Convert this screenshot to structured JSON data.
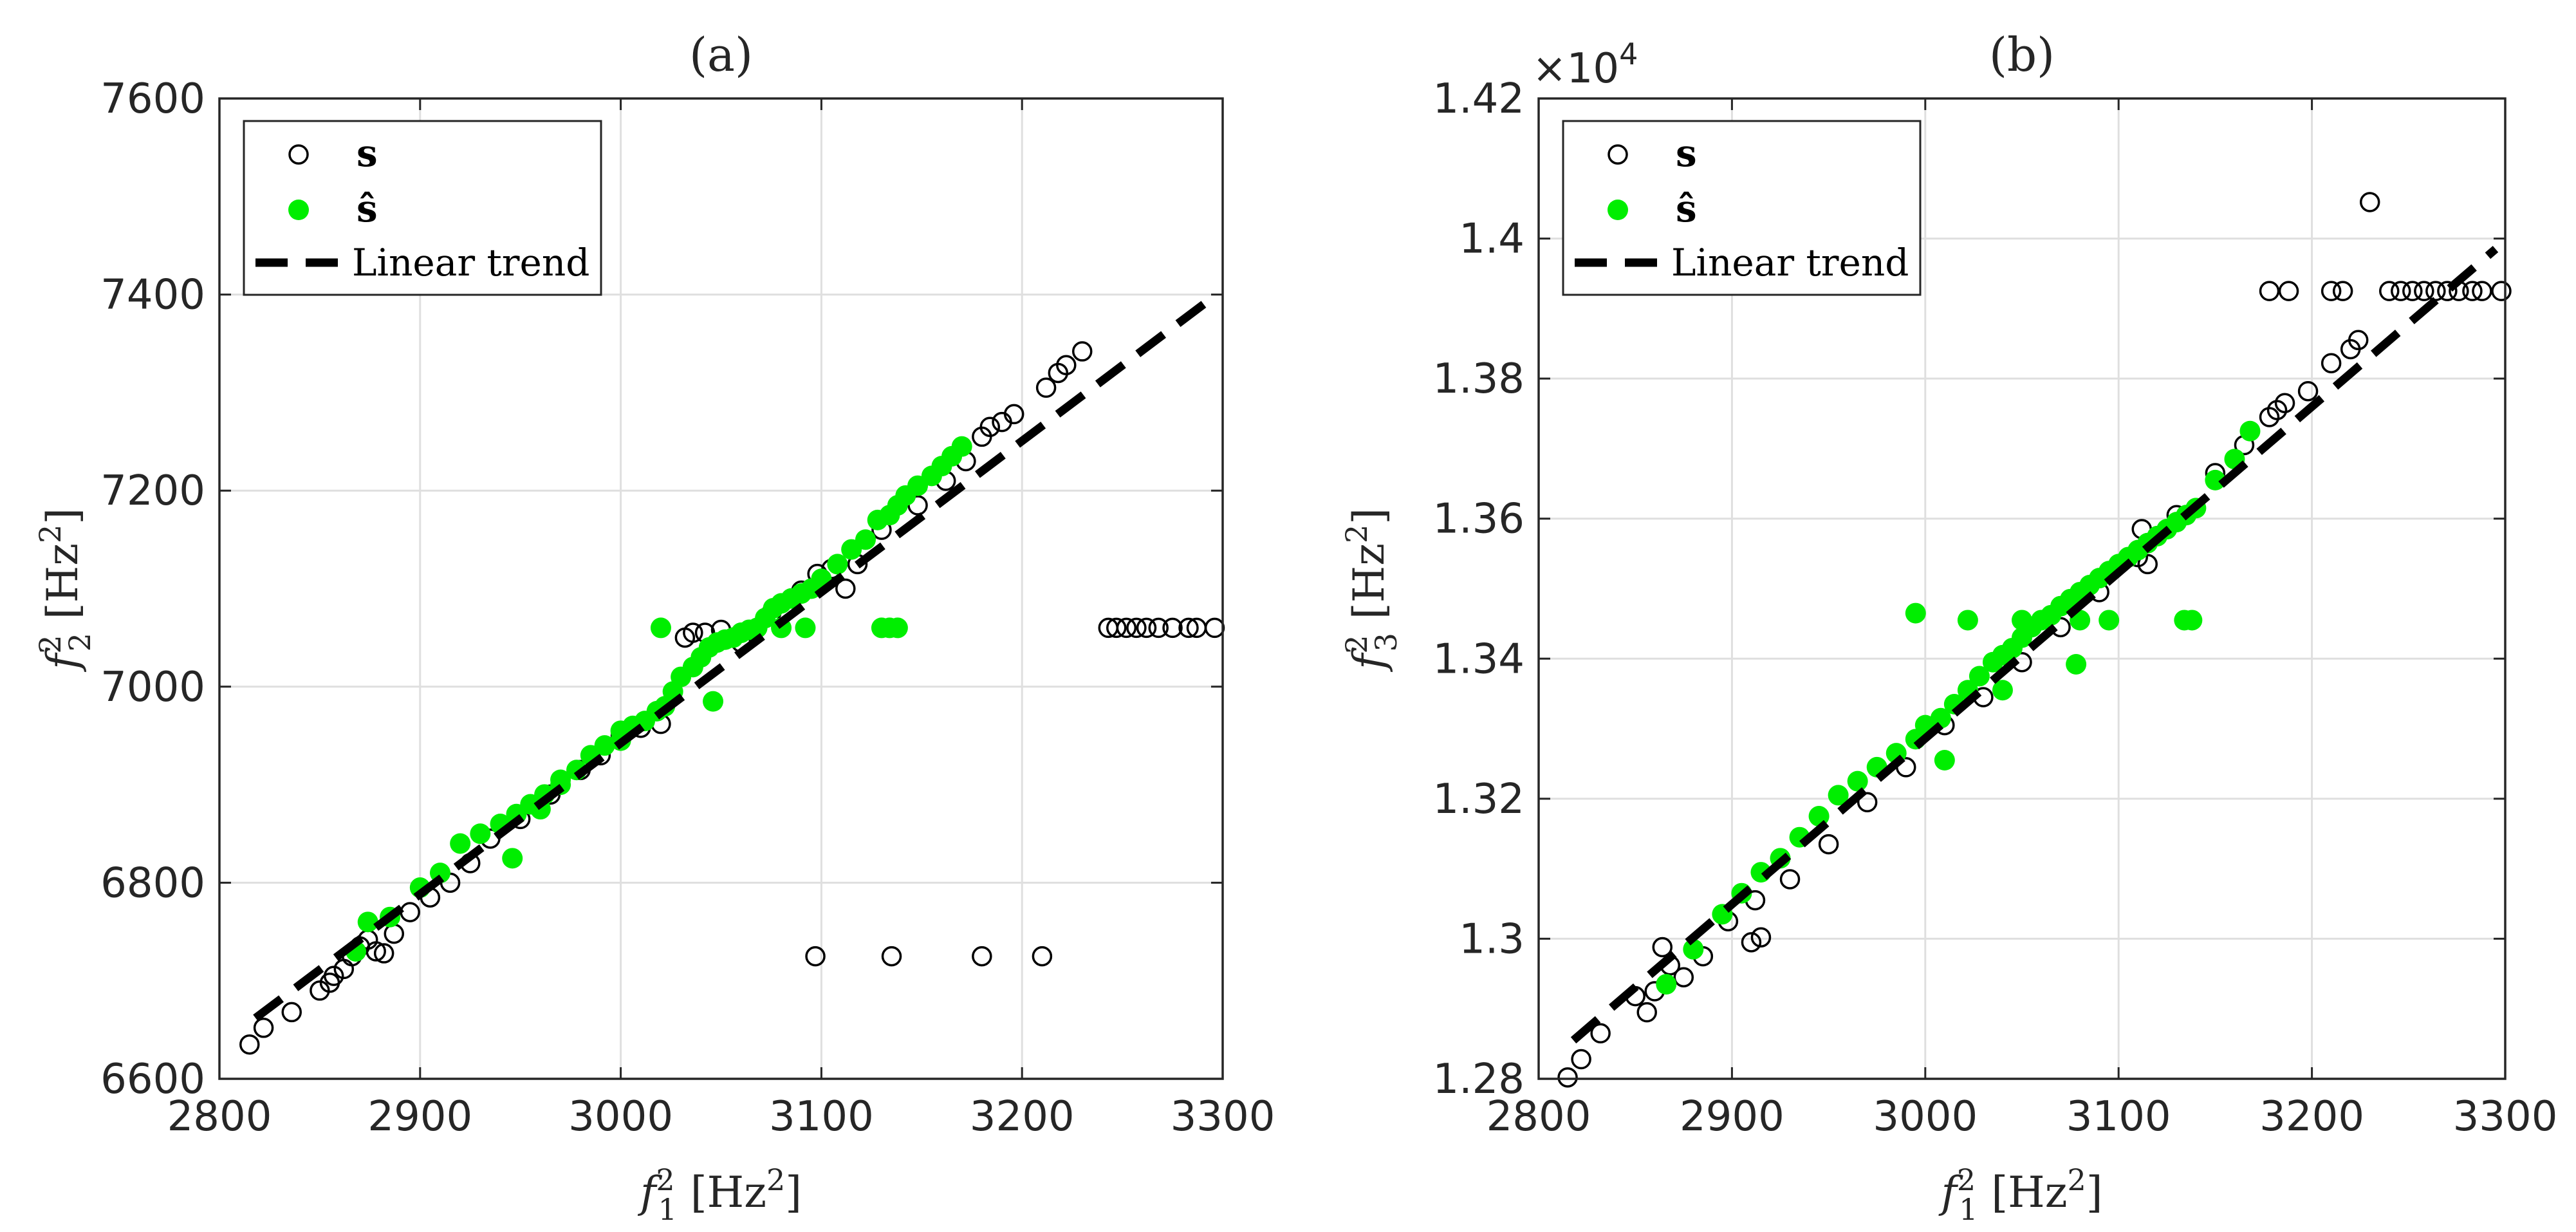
{
  "chart_data": [
    {
      "type": "scatter",
      "title": "(a)",
      "xlabel": "f_1^2 [Hz^2]",
      "ylabel": "f_2^2 [Hz^2]",
      "xlim": [
        2800,
        3300
      ],
      "ylim": [
        6600,
        7600
      ],
      "xticks": [
        "2800",
        "2900",
        "3000",
        "3100",
        "3200",
        "3300"
      ],
      "yticks": [
        "6600",
        "6800",
        "7000",
        "7200",
        "7400",
        "7600"
      ],
      "grid": true,
      "legend": {
        "position": "top-left",
        "entries": [
          "s",
          "ŝ",
          "Linear trend"
        ]
      },
      "trend": {
        "x": [
          2818,
          3295
        ],
        "y": [
          6662,
          7397
        ]
      },
      "series": [
        {
          "name": "s",
          "marker": "open-circle",
          "color": "#000000",
          "x": [
            2815,
            2822,
            2836,
            2850,
            2855,
            2857,
            2862,
            2866,
            2870,
            2874,
            2878,
            2882,
            2887,
            2895,
            2905,
            2915,
            2925,
            2935,
            2950,
            2965,
            2980,
            2990,
            3000,
            3010,
            3020,
            3032,
            3036,
            3042,
            3050,
            3060,
            3075,
            3090,
            3098,
            3105,
            3112,
            3118,
            3130,
            3148,
            3162,
            3172,
            3180,
            3184,
            3190,
            3196,
            3212,
            3218,
            3222,
            3230,
            3243,
            3247,
            3252,
            3257,
            3262,
            3268,
            3275,
            3283,
            3287,
            3296,
            3097,
            3135,
            3180,
            3210
          ],
          "y": [
            6635,
            6652,
            6668,
            6690,
            6698,
            6705,
            6712,
            6725,
            6735,
            6742,
            6730,
            6728,
            6748,
            6770,
            6785,
            6800,
            6820,
            6845,
            6865,
            6890,
            6915,
            6930,
            6950,
            6958,
            6962,
            7050,
            7055,
            7055,
            7058,
            7045,
            7075,
            7098,
            7115,
            7120,
            7100,
            7125,
            7160,
            7185,
            7210,
            7230,
            7255,
            7265,
            7270,
            7278,
            7305,
            7320,
            7328,
            7342,
            7060,
            7060,
            7060,
            7060,
            7060,
            7060,
            7060,
            7060,
            7060,
            7060,
            6725,
            6725,
            6725,
            6725
          ]
        },
        {
          "name": "ŝ",
          "marker": "filled-circle",
          "color": "#00ee00",
          "x": [
            2868,
            2874,
            2885,
            2900,
            2910,
            2920,
            2930,
            2940,
            2948,
            2955,
            2962,
            2970,
            2978,
            2985,
            2992,
            3000,
            3006,
            3012,
            3018,
            3022,
            3026,
            3030,
            3036,
            3040,
            3044,
            3048,
            3052,
            3056,
            3060,
            3064,
            3068,
            3072,
            3076,
            3080,
            3085,
            3090,
            3095,
            3100,
            3108,
            3115,
            3122,
            3128,
            3134,
            3138,
            3142,
            3148,
            3155,
            3160,
            3165,
            3170,
            3046,
            2946,
            3130,
            3134,
            3138,
            3080,
            3092,
            2960,
            2970,
            3000,
            3020
          ],
          "y": [
            6730,
            6760,
            6765,
            6795,
            6810,
            6840,
            6850,
            6860,
            6870,
            6880,
            6890,
            6905,
            6915,
            6930,
            6940,
            6955,
            6960,
            6965,
            6975,
            6980,
            6995,
            7010,
            7020,
            7030,
            7040,
            7045,
            7048,
            7050,
            7055,
            7058,
            7060,
            7070,
            7080,
            7085,
            7090,
            7095,
            7100,
            7110,
            7125,
            7140,
            7150,
            7170,
            7175,
            7185,
            7195,
            7205,
            7215,
            7225,
            7235,
            7245,
            6985,
            6825,
            7060,
            7060,
            7060,
            7060,
            7060,
            6875,
            6900,
            6945,
            7060
          ]
        }
      ]
    },
    {
      "type": "scatter",
      "title": "(b)",
      "xlabel": "f_1^2 [Hz^2]",
      "ylabel": "f_3^2 [Hz^2]",
      "multiplier": "×10^4",
      "xlim": [
        2800,
        3300
      ],
      "ylim": [
        1.28,
        1.42
      ],
      "xticks": [
        "2800",
        "2900",
        "3000",
        "3100",
        "3200",
        "3300"
      ],
      "yticks": [
        "1.28",
        "1.3",
        "1.32",
        "1.34",
        "1.36",
        "1.38",
        "1.4",
        "1.42"
      ],
      "grid": true,
      "legend": {
        "position": "top-left",
        "entries": [
          "s",
          "ŝ",
          "Linear trend"
        ]
      },
      "trend": {
        "x": [
          2818,
          3295
        ],
        "y": [
          1.2855,
          1.3985
        ]
      },
      "series": [
        {
          "name": "s",
          "marker": "open-circle",
          "color": "#000000",
          "x": [
            2815,
            2822,
            2832,
            2850,
            2856,
            2860,
            2864,
            2868,
            2875,
            2885,
            2898,
            2910,
            2915,
            2912,
            2930,
            2950,
            2970,
            2990,
            3010,
            3030,
            3050,
            3070,
            3090,
            3110,
            3130,
            3150,
            3165,
            3178,
            3182,
            3186,
            3198,
            3210,
            3220,
            3224,
            3230,
            3178,
            3188,
            3210,
            3216,
            3240,
            3246,
            3252,
            3258,
            3264,
            3270,
            3276,
            3283,
            3288,
            3298,
            3112,
            3115
          ],
          "y": [
            1.2802,
            1.2828,
            1.2865,
            1.2918,
            1.2895,
            1.2925,
            1.2988,
            1.2962,
            1.2945,
            1.2975,
            1.3025,
            1.2995,
            1.3002,
            1.3055,
            1.3085,
            1.3135,
            1.3195,
            1.3245,
            1.3305,
            1.3345,
            1.3395,
            1.3445,
            1.3495,
            1.3545,
            1.3605,
            1.3665,
            1.3705,
            1.3745,
            1.3755,
            1.3765,
            1.3782,
            1.3822,
            1.3842,
            1.3855,
            1.4052,
            1.3925,
            1.3925,
            1.3925,
            1.3925,
            1.3925,
            1.3925,
            1.3925,
            1.3925,
            1.3925,
            1.3925,
            1.3925,
            1.3925,
            1.3925,
            1.3925,
            1.3585,
            1.3535
          ]
        },
        {
          "name": "ŝ",
          "marker": "filled-circle",
          "color": "#00ee00",
          "x": [
            2866,
            2880,
            2895,
            2905,
            2915,
            2925,
            2935,
            2945,
            2955,
            2965,
            2975,
            2985,
            2995,
            3000,
            3008,
            3015,
            3022,
            3028,
            3035,
            3040,
            3045,
            3050,
            3055,
            3060,
            3065,
            3070,
            3075,
            3080,
            3085,
            3090,
            3095,
            3100,
            3105,
            3110,
            3115,
            3120,
            3125,
            3130,
            3135,
            3140,
            3150,
            3160,
            3168,
            2995,
            3022,
            3050,
            3080,
            3095,
            3134,
            3138,
            3078,
            3010,
            3040
          ],
          "y": [
            1.2935,
            1.2985,
            1.3035,
            1.3065,
            1.3095,
            1.3115,
            1.3145,
            1.3175,
            1.3205,
            1.3225,
            1.3245,
            1.3265,
            1.3285,
            1.3305,
            1.3315,
            1.3335,
            1.3355,
            1.3375,
            1.3395,
            1.3405,
            1.3415,
            1.343,
            1.3445,
            1.3455,
            1.3462,
            1.3475,
            1.3485,
            1.3495,
            1.3505,
            1.3515,
            1.3525,
            1.3535,
            1.3545,
            1.3555,
            1.3565,
            1.3575,
            1.3585,
            1.3595,
            1.3605,
            1.3615,
            1.3655,
            1.3685,
            1.3725,
            1.3465,
            1.3455,
            1.3455,
            1.3455,
            1.3455,
            1.3455,
            1.3455,
            1.3392,
            1.3255,
            1.3355
          ]
        }
      ]
    }
  ]
}
